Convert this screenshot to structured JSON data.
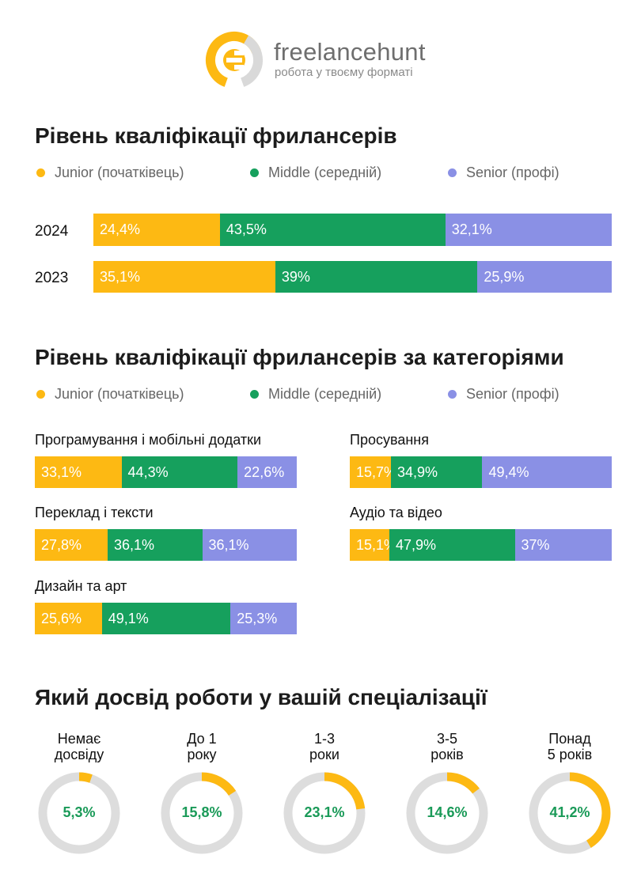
{
  "brand": {
    "name": "freelancehunt",
    "tagline": "робота у твоєму форматі",
    "icon": "freelancehunt-logo"
  },
  "colors": {
    "junior": "#FDB913",
    "middle": "#16A05D",
    "senior": "#8A90E5",
    "track": "#DDDDDD",
    "value_text": "#1A9A58"
  },
  "section1": {
    "title": "Рівень кваліфікації фрилансерів"
  },
  "section2": {
    "title": "Рівень кваліфікації фрилансерів за категоріями"
  },
  "section3": {
    "title": "Який досвід роботи у вашій спеціалізації"
  },
  "legend": {
    "junior": "Junior (початківець)",
    "middle": "Middle (середній)",
    "senior": "Senior (профі)"
  },
  "chart_data": [
    {
      "type": "bar",
      "stacked": true,
      "orientation": "horizontal",
      "title": "Рівень кваліфікації фрилансерів",
      "categories": [
        "2024",
        "2023"
      ],
      "series": [
        {
          "name": "Junior (початківець)",
          "values": [
            24.4,
            35.1
          ],
          "labels": [
            "24,4%",
            "35,1%"
          ]
        },
        {
          "name": "Middle (середній)",
          "values": [
            43.5,
            39
          ],
          "labels": [
            "43,5%",
            "39%"
          ]
        },
        {
          "name": "Senior (профі)",
          "values": [
            32.1,
            25.9
          ],
          "labels": [
            "32,1%",
            "25,9%"
          ]
        }
      ],
      "legend": "top"
    },
    {
      "type": "bar",
      "stacked": true,
      "orientation": "horizontal",
      "title": "Рівень кваліфікації фрилансерів за категоріями",
      "categories": [
        "Програмування і мобільні додатки",
        "Переклад і тексти",
        "Дизайн та арт",
        "Просування",
        "Аудіо та відео"
      ],
      "series": [
        {
          "name": "Junior (початківець)",
          "values": [
            33.1,
            27.8,
            25.6,
            15.7,
            15.1
          ],
          "labels": [
            "33,1%",
            "27,8%",
            "25,6%",
            "15,7%",
            "15,1%"
          ]
        },
        {
          "name": "Middle (середній)",
          "values": [
            44.3,
            36.1,
            49.1,
            34.9,
            47.9
          ],
          "labels": [
            "44,3%",
            "36,1%",
            "49,1%",
            "34,9%",
            "47,9%"
          ]
        },
        {
          "name": "Senior (профі)",
          "values": [
            22.6,
            36.1,
            25.3,
            49.4,
            37
          ],
          "labels": [
            "22,6%",
            "36,1%",
            "25,3%",
            "49,4%",
            "37%"
          ]
        }
      ],
      "legend": "top"
    },
    {
      "type": "pie",
      "variant": "donut",
      "title": "Який досвід роботи у вашій спеціалізації",
      "categories": [
        "Немає досвіду",
        "До 1 року",
        "1-3 роки",
        "3-5 років",
        "Понад 5 років"
      ],
      "values": [
        5.3,
        15.8,
        23.1,
        14.6,
        41.2
      ],
      "labels": [
        "5,3%",
        "15,8%",
        "23,1%",
        "14,6%",
        "41,2%"
      ]
    }
  ],
  "years": [
    "2024",
    "2023"
  ],
  "category_titles": [
    "Програмування і мобільні додатки",
    "Переклад і тексти",
    "Дизайн та арт",
    "Просування",
    "Аудіо та відео"
  ],
  "experience": [
    {
      "line1": "Немає",
      "line2": "досвіду",
      "label": "5,3%"
    },
    {
      "line1": "До 1",
      "line2": "року",
      "label": "15,8%"
    },
    {
      "line1": "1-3",
      "line2": "роки",
      "label": "23,1%"
    },
    {
      "line1": "3-5",
      "line2": "років",
      "label": "14,6%"
    },
    {
      "line1": "Понад",
      "line2": "5 років",
      "label": "41,2%"
    }
  ]
}
